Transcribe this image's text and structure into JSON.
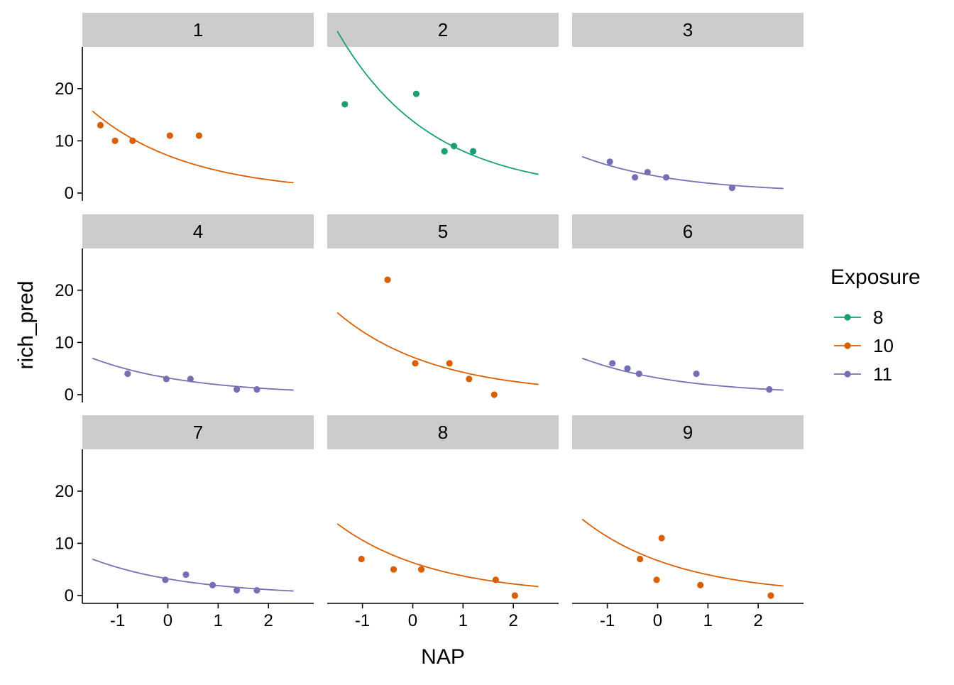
{
  "chart_data": {
    "type": "scatter",
    "xlabel": "NAP",
    "ylabel": "rich_pred",
    "xlim": [
      -1.7,
      2.9
    ],
    "ylim": [
      -1.5,
      28
    ],
    "x_ticks": [
      -1,
      0,
      1,
      2
    ],
    "x_tick_labels": [
      "-1",
      "0",
      "1",
      "2"
    ],
    "y_ticks": [
      0,
      10,
      20
    ],
    "y_tick_labels": [
      "0",
      "10",
      "20"
    ],
    "legend": {
      "title": "Exposure",
      "placement": "right",
      "entries": [
        {
          "label": "8",
          "color": "#1b9e77"
        },
        {
          "label": "10",
          "color": "#d95f02"
        },
        {
          "label": "11",
          "color": "#7570b3"
        }
      ]
    },
    "grid": false,
    "panels": [
      {
        "label": "1",
        "exposure": "10",
        "points": [
          [
            -1.34,
            13
          ],
          [
            -1.05,
            10
          ],
          [
            -0.7,
            10
          ],
          [
            0.04,
            11
          ],
          [
            0.62,
            11
          ]
        ],
        "curve": {
          "a": 7.2,
          "b": 0.52,
          "x0": -1.5,
          "x1": 2.5
        }
      },
      {
        "label": "2",
        "exposure": "8",
        "points": [
          [
            -1.35,
            17
          ],
          [
            0.07,
            19
          ],
          [
            0.63,
            8
          ],
          [
            0.82,
            9
          ],
          [
            1.2,
            8
          ]
        ],
        "curve": {
          "a": 13.8,
          "b": 0.54,
          "x0": -1.5,
          "x1": 2.5
        }
      },
      {
        "label": "3",
        "exposure": "11",
        "points": [
          [
            -0.95,
            6
          ],
          [
            -0.45,
            3
          ],
          [
            -0.2,
            4
          ],
          [
            0.17,
            3
          ],
          [
            1.48,
            1
          ]
        ],
        "curve": {
          "a": 3.2,
          "b": 0.52,
          "x0": -1.5,
          "x1": 2.5
        }
      },
      {
        "label": "4",
        "exposure": "11",
        "points": [
          [
            -0.8,
            4
          ],
          [
            -0.03,
            3
          ],
          [
            0.45,
            3
          ],
          [
            1.37,
            1
          ],
          [
            1.77,
            1
          ]
        ],
        "curve": {
          "a": 3.2,
          "b": 0.52,
          "x0": -1.5,
          "x1": 2.5
        }
      },
      {
        "label": "5",
        "exposure": "10",
        "points": [
          [
            -0.5,
            22
          ],
          [
            0.05,
            6
          ],
          [
            0.73,
            6
          ],
          [
            1.12,
            3
          ],
          [
            1.62,
            0
          ]
        ],
        "curve": {
          "a": 7.2,
          "b": 0.52,
          "x0": -1.5,
          "x1": 2.5
        }
      },
      {
        "label": "6",
        "exposure": "11",
        "points": [
          [
            -0.9,
            6
          ],
          [
            -0.6,
            5
          ],
          [
            -0.37,
            4
          ],
          [
            0.77,
            4
          ],
          [
            2.22,
            1
          ]
        ],
        "curve": {
          "a": 3.2,
          "b": 0.52,
          "x0": -1.5,
          "x1": 2.5
        }
      },
      {
        "label": "7",
        "exposure": "11",
        "points": [
          [
            -0.05,
            3
          ],
          [
            0.36,
            4
          ],
          [
            0.89,
            2
          ],
          [
            1.37,
            1
          ],
          [
            1.77,
            1
          ]
        ],
        "curve": {
          "a": 3.2,
          "b": 0.52,
          "x0": -1.5,
          "x1": 2.5
        }
      },
      {
        "label": "8",
        "exposure": "10",
        "points": [
          [
            -1.02,
            7
          ],
          [
            -0.38,
            5
          ],
          [
            0.17,
            5
          ],
          [
            1.65,
            3
          ],
          [
            2.03,
            0
          ]
        ],
        "curve": {
          "a": 6.3,
          "b": 0.52,
          "x0": -1.5,
          "x1": 2.5
        }
      },
      {
        "label": "9",
        "exposure": "10",
        "points": [
          [
            -0.35,
            7
          ],
          [
            0.08,
            11
          ],
          [
            -0.02,
            3
          ],
          [
            0.85,
            2
          ],
          [
            2.25,
            0
          ]
        ],
        "curve": {
          "a": 6.7,
          "b": 0.52,
          "x0": -1.5,
          "x1": 2.5
        }
      }
    ]
  }
}
